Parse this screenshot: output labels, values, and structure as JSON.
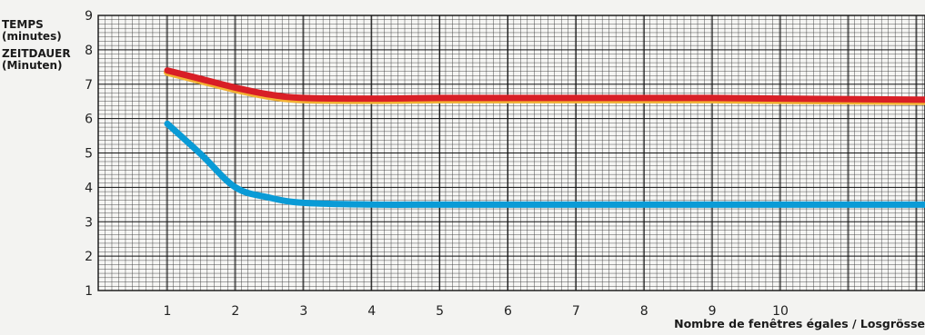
{
  "chart_data": {
    "type": "line",
    "title": "",
    "ylabel_lines": [
      "TEMPS",
      "(minutes)",
      "ZEITDAUER",
      "(Minuten)"
    ],
    "xlabel": "Nombre de fenêtres égales / Losgrösse",
    "x_ticks": [
      1,
      2,
      3,
      4,
      5,
      6,
      7,
      8,
      9,
      10
    ],
    "y_ticks": [
      1,
      2,
      3,
      4,
      5,
      6,
      7,
      8,
      9
    ],
    "ylim": [
      1,
      9
    ],
    "xlim": [
      0.5,
      15
    ],
    "grid": true,
    "series": [
      {
        "color": "#d81f26",
        "edge_color": "#f2b233",
        "x": [
          1,
          1.5,
          2,
          2.5,
          3,
          4,
          5,
          6,
          7,
          8,
          9,
          10,
          12,
          15
        ],
        "values": [
          7.4,
          7.15,
          6.9,
          6.7,
          6.6,
          6.58,
          6.6,
          6.6,
          6.6,
          6.6,
          6.6,
          6.58,
          6.55,
          6.55
        ]
      },
      {
        "color": "#0a9bd6",
        "x": [
          1,
          1.5,
          2,
          2.5,
          3,
          4,
          5,
          6,
          7,
          8,
          9,
          10,
          12,
          15
        ],
        "values": [
          5.85,
          4.95,
          4.0,
          3.7,
          3.55,
          3.5,
          3.5,
          3.5,
          3.5,
          3.5,
          3.5,
          3.5,
          3.5,
          3.5
        ]
      }
    ]
  }
}
